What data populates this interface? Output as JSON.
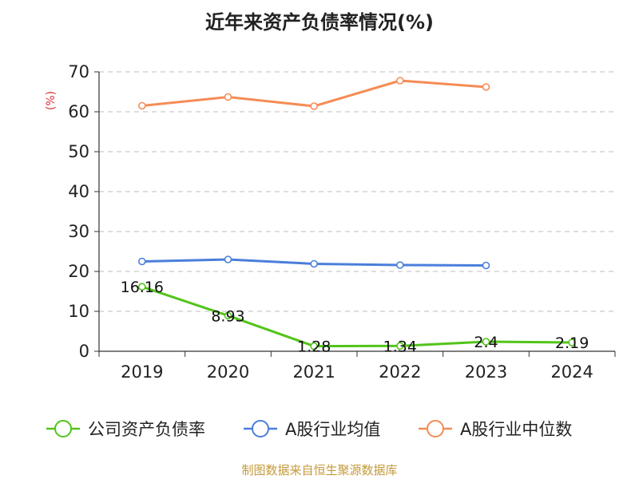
{
  "chart_data": {
    "type": "line",
    "title": "近年来资产负债率情况(%)",
    "ylabel": "(%)",
    "categories": [
      "2019",
      "2020",
      "2021",
      "2022",
      "2023",
      "2024"
    ],
    "ylim": [
      0,
      70
    ],
    "yticks": [
      0,
      10,
      20,
      30,
      40,
      50,
      60,
      70
    ],
    "grid": true,
    "legend_position": "bottom",
    "series": [
      {
        "name": "公司资产负债率",
        "color": "#52c41a",
        "values": [
          16.16,
          8.93,
          1.28,
          1.34,
          2.4,
          2.19
        ],
        "labels": [
          "16.16",
          "8.93",
          "1.28",
          "1.34",
          "2.4",
          "2.19"
        ]
      },
      {
        "name": "A股行业均值",
        "color": "#4a7fdb",
        "values": [
          22.5,
          23.0,
          21.9,
          21.6,
          21.5,
          null
        ]
      },
      {
        "name": "A股行业中位数",
        "color": "#f58c55",
        "values": [
          61.5,
          63.7,
          61.4,
          67.8,
          66.2,
          null
        ]
      }
    ]
  },
  "source": "制图数据来自恒生聚源数据库"
}
